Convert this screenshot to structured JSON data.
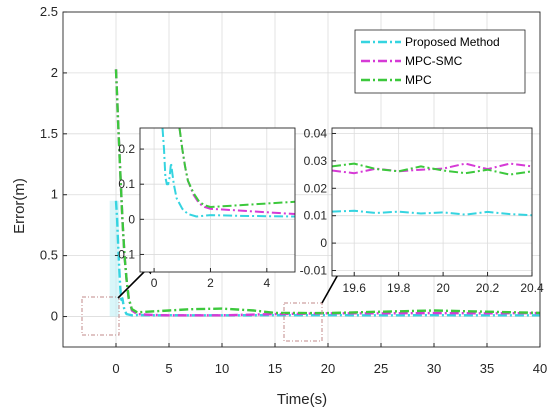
{
  "chart_data": [
    {
      "type": "line",
      "xlabel": "Time(s)",
      "ylabel": "Error(m)",
      "xlim": [
        -5,
        40
      ],
      "ylim": [
        -0.25,
        2.5
      ],
      "x_ticks": [
        "0",
        "5",
        "10",
        "15",
        "20",
        "25",
        "30",
        "35",
        "40"
      ],
      "y_ticks": [
        "0",
        "0.5",
        "1",
        "1.5",
        "2",
        "2.5"
      ],
      "grid": true,
      "legend": "top-right",
      "series": [
        {
          "name": "Proposed Method",
          "color": "#35d4e0",
          "dash": "dash-dot",
          "x": [
            0,
            0.1,
            0.2,
            0.3,
            0.4,
            0.5,
            0.6,
            0.7,
            0.8,
            1.0,
            1.5,
            2,
            3,
            4,
            5,
            6,
            8,
            10,
            15,
            20,
            25,
            30,
            35,
            40
          ],
          "y": [
            0.95,
            0.8,
            0.6,
            0.4,
            0.25,
            0.12,
            0.15,
            0.1,
            0.05,
            0.02,
            0.01,
            0.012,
            0.011,
            0.01,
            0.011,
            0.01,
            0.01,
            0.01,
            0.011,
            0.011,
            0.01,
            0.011,
            0.01,
            0.01
          ]
        },
        {
          "name": "MPC-SMC",
          "color": "#d63ad6",
          "dash": "dash-dot",
          "x": [
            0,
            0.2,
            0.4,
            0.6,
            0.8,
            1.0,
            1.2,
            1.5,
            2,
            3,
            4,
            5,
            8,
            10,
            15,
            20,
            25,
            30,
            35,
            40
          ],
          "y": [
            2.03,
            1.6,
            1.2,
            0.8,
            0.5,
            0.3,
            0.15,
            0.05,
            0.02,
            0.015,
            0.012,
            0.01,
            0.01,
            0.01,
            0.02,
            0.027,
            0.027,
            0.028,
            0.027,
            0.028
          ]
        },
        {
          "name": "MPC",
          "color": "#3cc83c",
          "dash": "dash-dot",
          "x": [
            0,
            0.2,
            0.4,
            0.6,
            0.8,
            1.0,
            1.2,
            1.5,
            2,
            3,
            4,
            5,
            7,
            10,
            13,
            15,
            20,
            25,
            30,
            35,
            40
          ],
          "y": [
            2.03,
            1.6,
            1.2,
            0.8,
            0.5,
            0.3,
            0.15,
            0.06,
            0.035,
            0.04,
            0.045,
            0.05,
            0.06,
            0.065,
            0.05,
            0.03,
            0.028,
            0.04,
            0.05,
            0.04,
            0.03
          ]
        }
      ]
    },
    {
      "type": "line",
      "inset": "zoom of t = 0 to 5",
      "xlim": [
        -0.5,
        5
      ],
      "ylim": [
        -0.15,
        0.26
      ],
      "x_ticks": [
        "0",
        "2",
        "4"
      ],
      "y_ticks": [
        "-0.1",
        "0",
        "0.1",
        "0.2"
      ],
      "grid": true,
      "series": [
        {
          "name": "Proposed Method",
          "color": "#35d4e0",
          "x": [
            0.3,
            0.35,
            0.4,
            0.45,
            0.5,
            0.55,
            0.6,
            0.65,
            0.7,
            0.8,
            1.0,
            1.2,
            1.5,
            2,
            3,
            4,
            5
          ],
          "y": [
            0.26,
            0.2,
            0.12,
            0.1,
            0.1,
            0.12,
            0.16,
            0.13,
            0.1,
            0.06,
            0.03,
            0.015,
            0.008,
            0.012,
            0.01,
            0.009,
            0.008
          ]
        },
        {
          "name": "MPC-SMC",
          "color": "#d63ad6",
          "x": [
            0.9,
            1.0,
            1.1,
            1.2,
            1.4,
            1.6,
            1.8,
            2,
            3,
            4,
            5
          ],
          "y": [
            0.26,
            0.2,
            0.15,
            0.11,
            0.07,
            0.045,
            0.035,
            0.03,
            0.025,
            0.02,
            0.015
          ]
        },
        {
          "name": "MPC",
          "color": "#3cc83c",
          "x": [
            0.9,
            1.0,
            1.1,
            1.2,
            1.4,
            1.6,
            1.8,
            2,
            3,
            4,
            5
          ],
          "y": [
            0.26,
            0.2,
            0.15,
            0.11,
            0.075,
            0.05,
            0.04,
            0.035,
            0.04,
            0.045,
            0.05
          ]
        }
      ]
    },
    {
      "type": "line",
      "inset": "zoom of t = 19.5 to 20.4",
      "xlim": [
        19.5,
        20.4
      ],
      "ylim": [
        -0.012,
        0.042
      ],
      "x_ticks": [
        "19.6",
        "19.8",
        "20",
        "20.2",
        "20.4"
      ],
      "y_ticks": [
        "-0.01",
        "0",
        "0.01",
        "0.02",
        "0.03",
        "0.04"
      ],
      "grid": true,
      "series": [
        {
          "name": "Proposed Method",
          "color": "#35d4e0",
          "x": [
            19.5,
            19.6,
            19.7,
            19.8,
            19.9,
            20.0,
            20.1,
            20.2,
            20.3,
            20.4
          ],
          "y": [
            0.0115,
            0.0118,
            0.011,
            0.0115,
            0.0108,
            0.0112,
            0.0104,
            0.0114,
            0.0106,
            0.0102
          ]
        },
        {
          "name": "MPC-SMC",
          "color": "#d63ad6",
          "x": [
            19.5,
            19.6,
            19.7,
            19.8,
            19.9,
            20.0,
            20.1,
            20.2,
            20.3,
            20.4
          ],
          "y": [
            0.0265,
            0.0255,
            0.0272,
            0.0262,
            0.0268,
            0.0272,
            0.029,
            0.027,
            0.029,
            0.028
          ]
        },
        {
          "name": "MPC",
          "color": "#3cc83c",
          "x": [
            19.5,
            19.6,
            19.7,
            19.8,
            19.9,
            20.0,
            20.1,
            20.2,
            20.3,
            20.4
          ],
          "y": [
            0.028,
            0.029,
            0.027,
            0.0262,
            0.028,
            0.0265,
            0.0255,
            0.0268,
            0.025,
            0.0262
          ]
        }
      ]
    }
  ]
}
